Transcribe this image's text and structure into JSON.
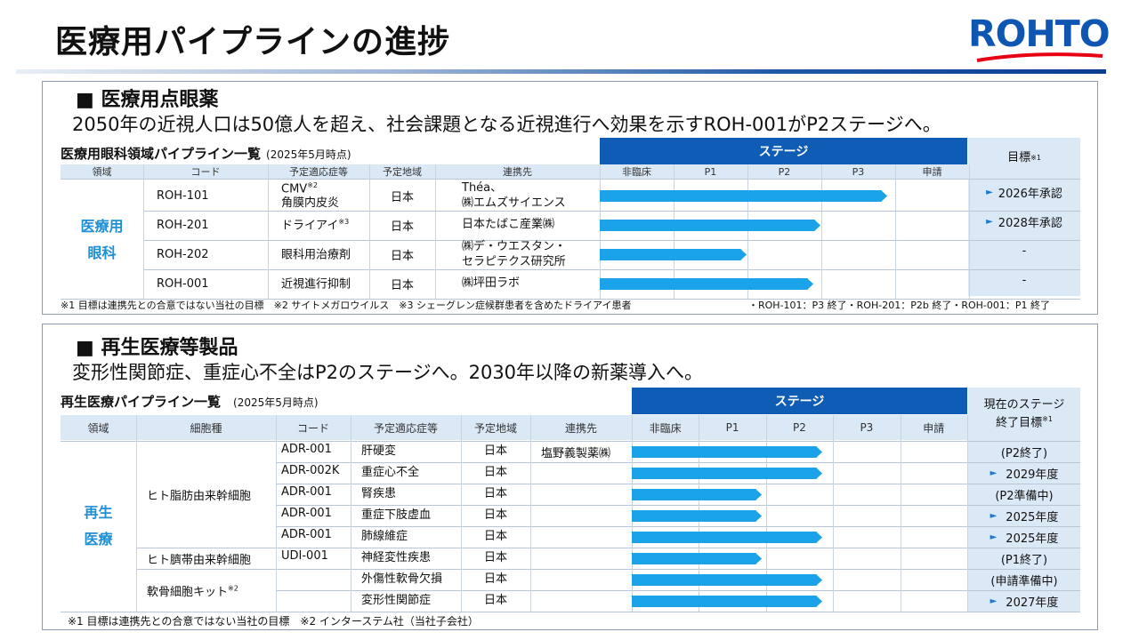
{
  "title": "医療用パイプラインの進捗",
  "logo": "ROHTO",
  "section1": {
    "heading": "■ 医療用点眼薬",
    "subtitle": "2050年の近視人口は50億人を超え、社会課題となる近視進行へ効果を示すROH-001がP2ステージへ。",
    "table_title": "医療用眼科領域パイプライン一覧",
    "table_date": "(2025年5月時点)",
    "stage_label": "ステージ",
    "goal_label": "目標",
    "goal_note": "※1",
    "columns": [
      "領域",
      "コード",
      "予定適応症等",
      "予定地域",
      "連携先"
    ],
    "stages": [
      "非臨床",
      "P1",
      "P2",
      "P3",
      "申請"
    ],
    "region_line1": "医療用",
    "region_line2": "眼科",
    "rows": [
      {
        "code": "ROH-101",
        "ind1": "CMV",
        "ind_sup": "※2",
        "ind2": "角膜内皮炎",
        "area": "日本",
        "p1": "Théa、",
        "p2": "㈱エムズサイエンス",
        "goal": "2026年承認",
        "progress": 3.9
      },
      {
        "code": "ROH-201",
        "ind1": "ドライアイ",
        "ind_sup": "※3",
        "ind2": "",
        "area": "日本",
        "p1": "日本たばこ産業㈱",
        "p2": "",
        "goal": "2028年承認",
        "progress": 3.0
      },
      {
        "code": "ROH-202",
        "ind1": "眼科用治療剤",
        "ind_sup": "",
        "ind2": "",
        "area": "日本",
        "p1": "㈱デ・ウエスタン・",
        "p2": "セラピテクス研究所",
        "goal": "-",
        "progress": 2.0
      },
      {
        "code": "ROH-001",
        "ind1": "近視進行抑制",
        "ind_sup": "",
        "ind2": "",
        "area": "日本",
        "p1": "㈱坪田ラボ",
        "p2": "",
        "goal": "-",
        "progress": 2.9
      }
    ],
    "footnote_left": "※1 目標は連携先との合意ではない当社の目標　※2 サイトメガロウイルス　※3 シェーグレン症候群患者を含めたドライアイ患者",
    "footnote_right": "・ROH-101：P3 終了・ROH-201：P2b 終了・ROH-001：P1 終了"
  },
  "section2": {
    "heading": "■ 再生医療等製品",
    "subtitle": "変形性関節症、重症心不全はP2のステージへ。2030年以降の新薬導入へ。",
    "table_title": "再生医療パイプライン一覧",
    "table_date": "(2025年5月時点)",
    "stage_label": "ステージ",
    "goal_label1": "現在のステージ",
    "goal_label2": "終了目標",
    "goal_note": "※1",
    "columns": [
      "領域",
      "細胞種",
      "コード",
      "予定適応症等",
      "予定地域",
      "連携先"
    ],
    "stages": [
      "非臨床",
      "P1",
      "P2",
      "P3",
      "申請"
    ],
    "region_line1": "再生",
    "region_line2": "医療",
    "cell_types": [
      {
        "label": "ヒト脂肪由来幹細胞",
        "sup": ""
      },
      {
        "label": "ヒト臍帯由来幹細胞",
        "sup": ""
      },
      {
        "label": "軟骨細胞キット",
        "sup": "※2"
      }
    ],
    "rows": [
      {
        "code": "ADR-001",
        "ind": "肝硬変",
        "area": "日本",
        "partner": "塩野義製薬㈱",
        "goal": "(P2終了)",
        "arrow": false,
        "progress": 2.85
      },
      {
        "code": "ADR-002K",
        "ind": "重症心不全",
        "area": "日本",
        "partner": "",
        "goal": "2029年度",
        "arrow": true,
        "progress": 2.85
      },
      {
        "code": "ADR-001",
        "ind": "腎疾患",
        "area": "日本",
        "partner": "",
        "goal": "(P2準備中)",
        "arrow": false,
        "progress": 1.95
      },
      {
        "code": "ADR-001",
        "ind": "重症下肢虚血",
        "area": "日本",
        "partner": "",
        "goal": "2025年度",
        "arrow": true,
        "progress": 1.95
      },
      {
        "code": "ADR-001",
        "ind": "肺線維症",
        "area": "日本",
        "partner": "",
        "goal": "2025年度",
        "arrow": true,
        "progress": 2.85
      },
      {
        "code": "UDI-001",
        "ind": "神経変性疾患",
        "area": "日本",
        "partner": "",
        "goal": "(P1終了)",
        "arrow": false,
        "progress": 1.95
      },
      {
        "code": "",
        "ind": "外傷性軟骨欠損",
        "area": "日本",
        "partner": "",
        "goal": "(申請準備中)",
        "arrow": false,
        "progress": 2.85
      },
      {
        "code": "",
        "ind": "変形性関節症",
        "area": "日本",
        "partner": "",
        "goal": "2027年度",
        "arrow": true,
        "progress": 2.85
      }
    ],
    "footnote": "※1 目標は連携先との合意ではない当社の目標　※2 インターステム社（当社子会社）"
  },
  "colors": {
    "stage_band": "#0f5cb5",
    "bar": "#1aa3e8",
    "header_bg": "#dbe8f6",
    "region_text": "#1f8fd6"
  }
}
